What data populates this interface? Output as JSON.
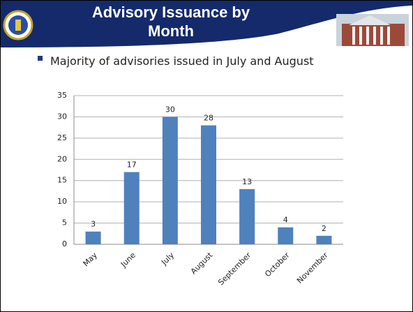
{
  "slide": {
    "title": "Advisory Issuance by Month",
    "bullet": "Majority of advisories issued in July and August"
  },
  "chart_data": {
    "type": "bar",
    "categories": [
      "May",
      "June",
      "July",
      "August",
      "September",
      "October",
      "November"
    ],
    "values": [
      3,
      17,
      30,
      28,
      13,
      4,
      2
    ],
    "color": "#4f81bd",
    "ylim": [
      0,
      35
    ],
    "yticks": [
      0,
      5,
      10,
      15,
      20,
      25,
      30,
      35
    ],
    "grid": true
  }
}
